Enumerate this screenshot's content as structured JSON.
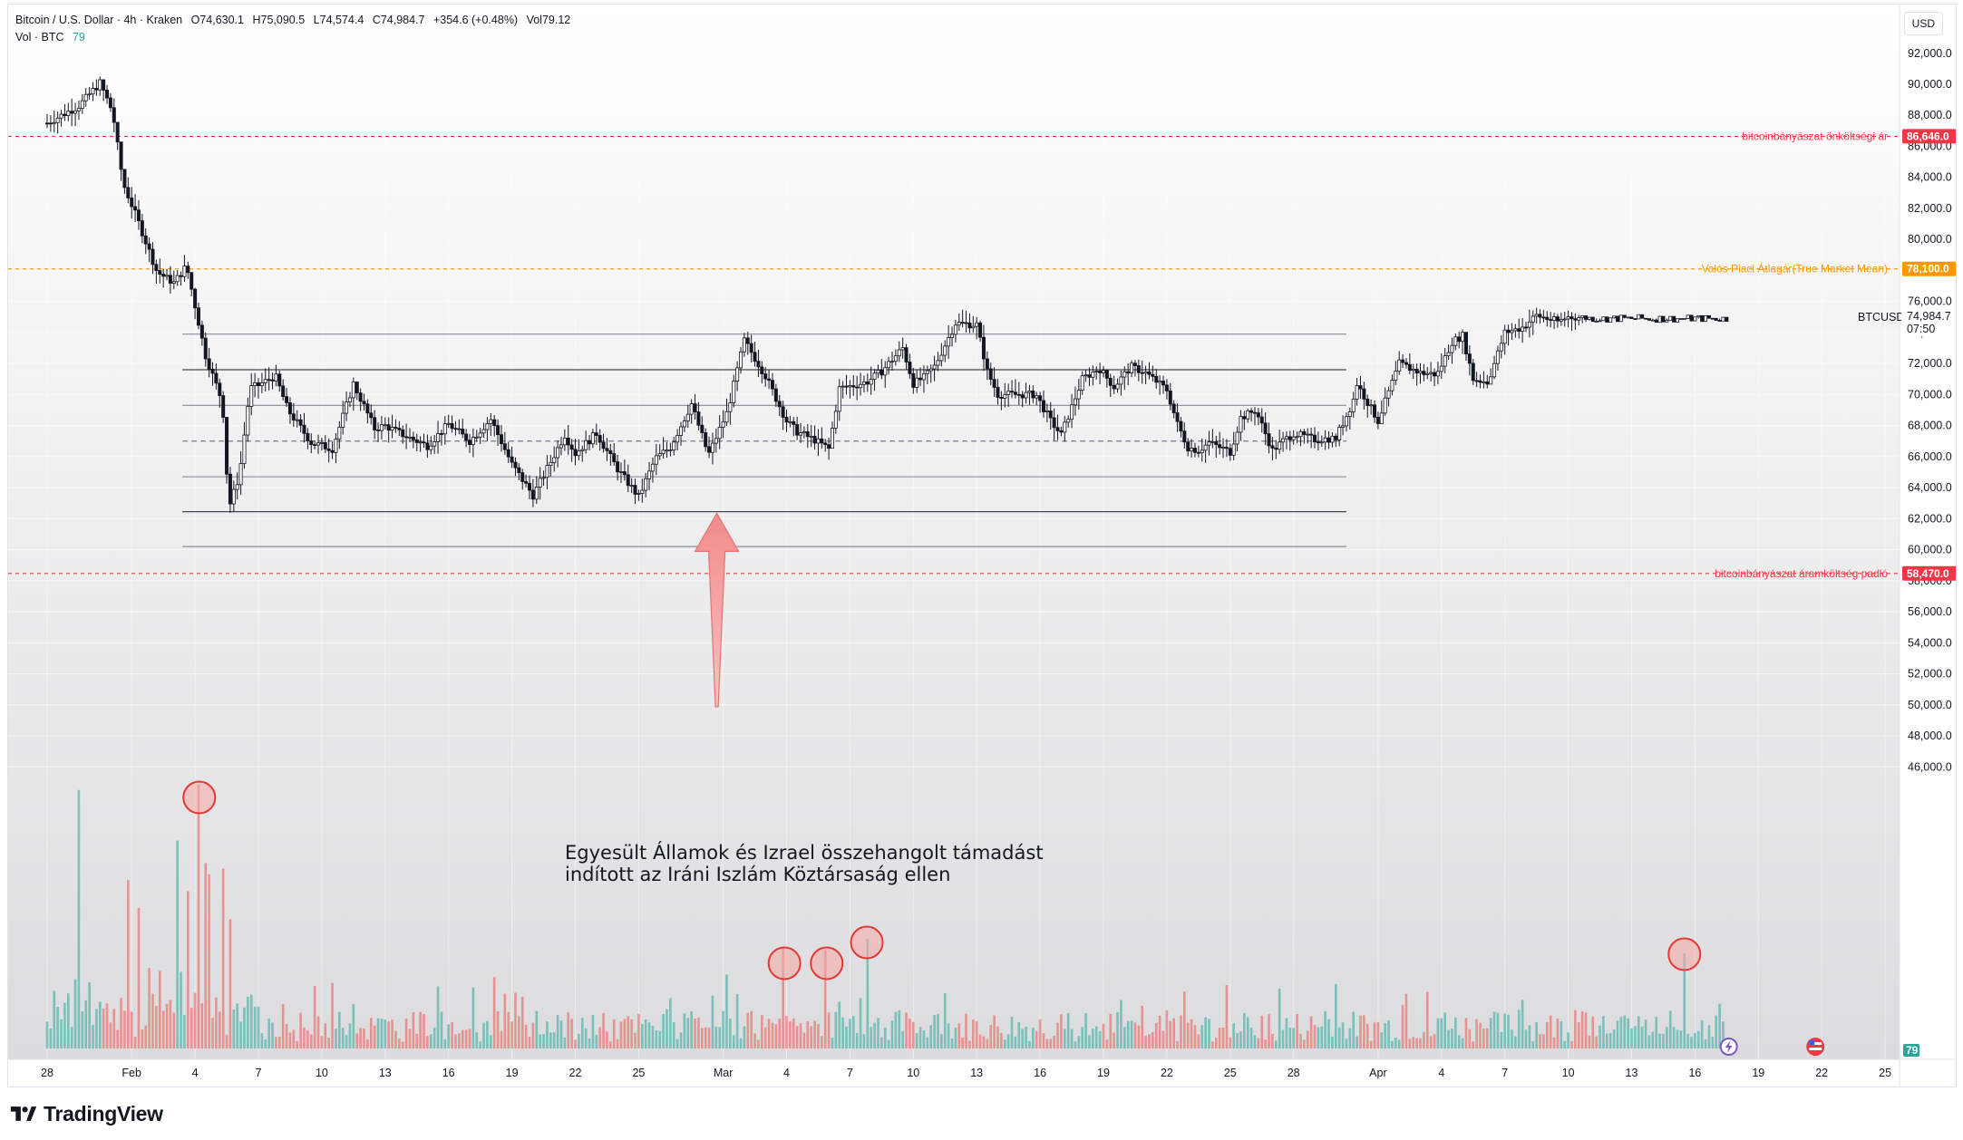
{
  "header": {
    "symbol_title": "Bitcoin / U.S. Dollar · 4h · Kraken",
    "ohlc": {
      "open_label": "O",
      "open": "74,630.1",
      "high_label": "H",
      "high": "75,090.5",
      "low_label": "L",
      "low": "74,574.4",
      "close_label": "C",
      "close": "74,984.7",
      "change": "+354.6 (+0.48%)",
      "vol_label": "Vol",
      "vol": "79.12"
    },
    "volume_legend": "Vol · BTC",
    "volume_value": "79"
  },
  "currency": "USD",
  "annotation": {
    "line1": "Egyesült Államok és Izrael összehangolt támadást",
    "line2": "indított az Iráni Iszlám Köztársaság ellen"
  },
  "footer": {
    "brand": "TradingView"
  },
  "chart_data": {
    "type": "candlestick",
    "symbol": "BTCUSD",
    "interval": "4h",
    "exchange": "Kraken",
    "y_axis": {
      "ylim": [
        38500,
        93000
      ],
      "ticks": [
        "92,000.0",
        "90,000.0",
        "88,000.0",
        "86,000.0",
        "84,000.0",
        "82,000.0",
        "80,000.0",
        "78,000.0",
        "76,000.0",
        "74,000.0",
        "72,000.0",
        "70,000.0",
        "68,000.0",
        "66,000.0",
        "64,000.0",
        "62,000.0",
        "60,000.0",
        "58,000.0",
        "56,000.0",
        "54,000.0",
        "52,000.0",
        "50,000.0",
        "48,000.0",
        "46,000.0"
      ],
      "tick_values": [
        92000,
        90000,
        88000,
        86000,
        84000,
        82000,
        80000,
        78000,
        76000,
        74000,
        72000,
        70000,
        68000,
        66000,
        64000,
        62000,
        60000,
        58000,
        56000,
        54000,
        52000,
        50000,
        48000,
        46000
      ]
    },
    "x_axis": {
      "ticks": [
        "28",
        "Feb",
        "4",
        "7",
        "10",
        "13",
        "16",
        "19",
        "22",
        "25",
        "Mar",
        "4",
        "7",
        "10",
        "13",
        "16",
        "19",
        "22",
        "25",
        "28",
        "Apr",
        "4",
        "7",
        "10",
        "13",
        "16",
        "19",
        "22",
        "25"
      ],
      "tick_day_index": [
        0,
        4,
        7,
        10,
        13,
        16,
        19,
        22,
        25,
        28,
        32,
        35,
        38,
        41,
        44,
        47,
        50,
        53,
        56,
        59,
        63,
        66,
        69,
        72,
        75,
        78,
        81,
        84,
        87
      ]
    },
    "last_price": {
      "label": "BTCUSD",
      "value": "74,984.7",
      "countdown": "07:50",
      "color": "#ffffff"
    },
    "price_path": {
      "day_index": [
        0,
        1.5,
        2.5,
        3.1,
        3.6,
        4.3,
        5.2,
        6,
        6.6,
        7.5,
        8.3,
        8.6,
        9.1,
        9.6,
        10,
        10.8,
        11.4,
        12.5,
        13.5,
        14.5,
        15.5,
        16,
        17,
        18,
        19,
        20,
        21,
        22,
        23,
        24.5,
        25,
        26,
        27,
        28,
        28.8,
        29.5,
        30.5,
        31.3,
        32.2,
        33,
        34,
        35,
        35.5,
        36.3,
        37,
        37.5,
        38.2,
        38.8,
        39.5,
        40.5,
        41,
        41.5,
        42,
        43,
        44,
        44.5,
        45,
        45.5,
        46,
        46.8,
        47.5,
        48,
        49,
        49.8,
        50.5,
        51.3,
        52,
        53,
        53.5,
        54,
        54.5,
        55,
        56,
        56.5,
        57.2,
        58,
        58.5,
        59,
        60,
        61,
        61.8,
        62,
        63,
        64,
        65,
        65.8,
        66.5,
        67,
        67.5,
        68.2,
        69,
        69.8,
        70.5,
        71.5,
        72,
        72.6,
        73.3,
        74,
        74.6,
        75,
        75.5,
        76,
        76.5,
        77,
        77.4,
        78,
        78.4,
        78.8,
        79.3,
        79.6,
        80
      ],
      "close": [
        87500,
        88600,
        90100,
        88200,
        83600,
        81200,
        77900,
        77200,
        78300,
        72500,
        69500,
        62700,
        64800,
        70400,
        70600,
        71200,
        69000,
        66900,
        66500,
        70700,
        67800,
        68000,
        67300,
        66700,
        68100,
        67000,
        68400,
        65500,
        63500,
        67400,
        66200,
        67500,
        65200,
        63400,
        65900,
        66600,
        69400,
        66100,
        68900,
        73500,
        71200,
        68300,
        67600,
        67100,
        66500,
        70400,
        70600,
        70800,
        71500,
        73000,
        70700,
        71100,
        71800,
        74600,
        74500,
        71500,
        70000,
        70000,
        70000,
        70000,
        68300,
        67400,
        71000,
        71700,
        70500,
        71800,
        71400,
        70300,
        68100,
        66600,
        66400,
        66900,
        66300,
        68500,
        69000,
        66400,
        67000,
        67500,
        67100,
        67200,
        69500,
        70700,
        68300,
        72000,
        71400,
        71300,
        73400,
        73800,
        71000,
        70800,
        74000,
        74300,
        75100,
        74700,
        75000,
        74984.7,
        74900,
        74900,
        74900,
        74900,
        74900,
        74900,
        74900,
        74900,
        74900,
        74900,
        74900,
        74900,
        74900,
        74900,
        74900
      ],
      "low": [
        86600,
        87200,
        88700,
        81000,
        80800,
        79000,
        75600,
        74200,
        76500,
        69300,
        60400,
        60400,
        62800,
        68000,
        68500,
        68400,
        67000,
        65200,
        65000,
        67500,
        66200,
        66100,
        65700,
        65500,
        66800,
        65800,
        65300,
        63000,
        62400,
        64800,
        64500,
        64800,
        63200,
        62900,
        63500,
        65000,
        66700,
        64300,
        67000,
        68800,
        69000,
        67000,
        66400,
        65700,
        65800,
        68300,
        69200,
        69100,
        70200,
        71000,
        70000,
        69700,
        70200,
        72800,
        72300,
        70200,
        68800,
        68500,
        68900,
        67800,
        66800,
        66500,
        69200,
        70400,
        69400,
        70500,
        70100,
        67700,
        65400,
        65300,
        65400,
        64800,
        65000,
        67000,
        66900,
        65600,
        65700,
        66400,
        66400,
        66400,
        67700,
        68200,
        67600,
        70700,
        70300,
        70600,
        71800,
        70600,
        70400,
        70400,
        72000,
        72500,
        74000,
        73700,
        73700,
        74574.4,
        74900,
        74900,
        74900,
        74900,
        74900,
        74900,
        74900,
        74900,
        74900,
        74900,
        74900,
        74900,
        74900,
        74900,
        74900
      ],
      "high": [
        88600,
        89400,
        90500,
        89800,
        84500,
        83000,
        79300,
        78000,
        79200,
        74000,
        72200,
        66700,
        69200,
        71600,
        71900,
        72000,
        70600,
        68200,
        68400,
        71100,
        69000,
        69200,
        68800,
        68200,
        68700,
        68400,
        68800,
        68100,
        65600,
        69900,
        68200,
        68900,
        67700,
        65600,
        67400,
        68600,
        70000,
        70100,
        69900,
        74200,
        73300,
        71600,
        69700,
        68100,
        67700,
        71000,
        71800,
        71400,
        72900,
        73900,
        72000,
        72400,
        72500,
        75900,
        75000,
        74300,
        71000,
        70700,
        71600,
        70400,
        70500,
        68600,
        71500,
        72100,
        71200,
        72200,
        72300,
        71000,
        70200,
        67200,
        67000,
        67800,
        67700,
        69000,
        69200,
        69000,
        67600,
        67700,
        67900,
        67500,
        70300,
        71600,
        69300,
        72800,
        72500,
        72200,
        73800,
        74200,
        73200,
        71300,
        74500,
        76000,
        75600,
        75200,
        75400,
        75090.5,
        74900,
        74900,
        74900,
        74900,
        74900,
        74900,
        74900,
        74900,
        74900,
        74900,
        74900,
        74900,
        74900,
        74900,
        74900
      ]
    },
    "volume": {
      "max_ref": 1000,
      "spikes": [
        {
          "day_index": 1.5,
          "value": 460
        },
        {
          "day_index": 3.9,
          "value": 300
        },
        {
          "day_index": 4.3,
          "value": 250
        },
        {
          "day_index": 6.2,
          "value": 370
        },
        {
          "day_index": 6.7,
          "value": 280
        },
        {
          "day_index": 7.2,
          "value": 470
        },
        {
          "day_index": 7.45,
          "value": 330
        },
        {
          "day_index": 7.7,
          "value": 310
        },
        {
          "day_index": 8.3,
          "value": 320
        },
        {
          "day_index": 8.6,
          "value": 230
        },
        {
          "day_index": 34.9,
          "value": 180
        },
        {
          "day_index": 36.9,
          "value": 175
        },
        {
          "day_index": 38.8,
          "value": 195
        },
        {
          "day_index": 77.5,
          "value": 170
        },
        {
          "day_index": 79.6,
          "value": 135
        }
      ]
    },
    "horizontal_levels": [
      {
        "name": "bitcoinbányászat önköltségi ár",
        "value": 86646,
        "tag": "86,646.0",
        "color": "#f23645",
        "style": "dashed",
        "full": true
      },
      {
        "name": "Valós Piaci Átlagár(True Market Mean)",
        "value": 78100,
        "tag": "78,100.0",
        "color": "#ff9800",
        "style": "dashed",
        "full": true
      },
      {
        "name": "bitcoinbányászat áramköltség padló",
        "value": 58470,
        "tag": "58,470.0",
        "color": "#f23645",
        "style": "dashed",
        "full": true
      },
      {
        "name": "",
        "value": 73900,
        "color": "#9598a1",
        "style": "solid",
        "full": false
      },
      {
        "name": "",
        "value": 71600,
        "color": "#434651",
        "style": "solid",
        "full": false
      },
      {
        "name": "",
        "value": 69300,
        "color": "#9598a1",
        "style": "solid",
        "full": false
      },
      {
        "name": "",
        "value": 67000,
        "color": "#787b86",
        "style": "dashed",
        "full": false
      },
      {
        "name": "",
        "value": 64700,
        "color": "#9598a1",
        "style": "solid",
        "full": false
      },
      {
        "name": "",
        "value": 62450,
        "color": "#434651",
        "style": "solid",
        "full": false
      },
      {
        "name": "",
        "value": 60200,
        "color": "#9598a1",
        "style": "solid",
        "full": false
      }
    ],
    "volume_circles": [
      7.2,
      34.9,
      36.9,
      38.8,
      77.5
    ],
    "arrow": {
      "day_index": 31.7,
      "tip_value": 62700,
      "tail_value": 52800
    },
    "colors": {
      "up": "#26a69a",
      "down": "#ef5350",
      "candle": "#131722"
    }
  }
}
